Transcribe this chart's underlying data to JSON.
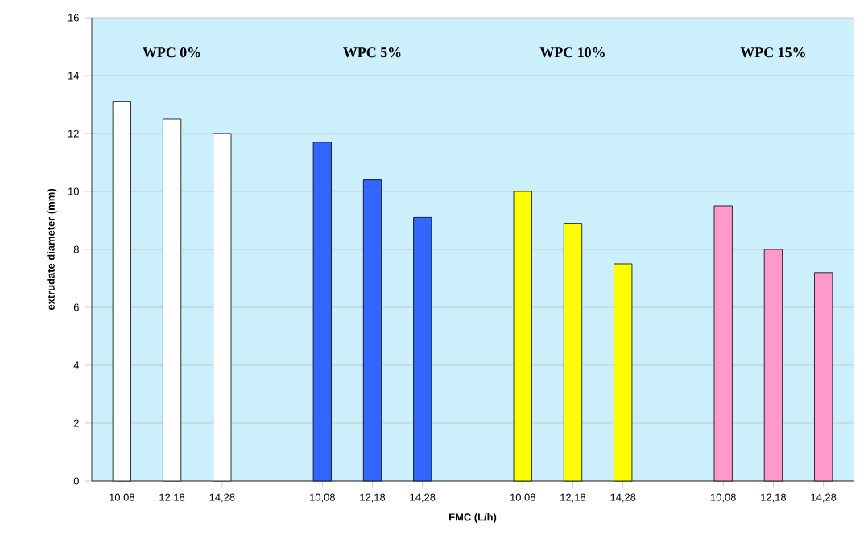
{
  "chart_data": {
    "type": "bar",
    "xlabel": "FMC (L/h)",
    "ylabel": "extrudate diameter (mm)",
    "categories": [
      "10,08",
      "12,18",
      "14,28",
      null,
      "10,08",
      "12,18",
      "14,28",
      null,
      "10,08",
      "12,18",
      "14,28",
      null,
      "10,08",
      "12,18",
      "14,28"
    ],
    "values": [
      13.1,
      12.5,
      12.0,
      null,
      11.7,
      10.4,
      9.1,
      null,
      10.0,
      8.9,
      7.5,
      null,
      9.5,
      8.0,
      7.2
    ],
    "colors": [
      "#ffffff",
      "#ffffff",
      "#ffffff",
      null,
      "#3366ff",
      "#3366ff",
      "#3366ff",
      null,
      "#ffff00",
      "#ffff00",
      "#ffff00",
      null,
      "#ff99cc",
      "#ff99cc",
      "#ff99cc"
    ],
    "ylim": [
      0,
      16
    ],
    "yticks": [
      0,
      2,
      4,
      6,
      8,
      10,
      12,
      14,
      16
    ],
    "grid": "y",
    "annotations": [
      "WPC 0%",
      "WPC 5%",
      "WPC 10%",
      "WPC 15%"
    ]
  }
}
